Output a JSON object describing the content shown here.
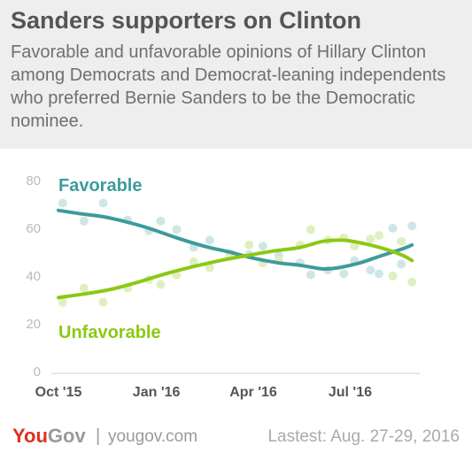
{
  "header": {
    "title": "Sanders supporters on Clinton",
    "subtitle": "Favorable and unfavorable opinions of Hillary Clinton among Democrats and Democrat-leaning independents who preferred Bernie Sanders to be the Democratic nominee."
  },
  "chart_data": {
    "type": "line",
    "title": "",
    "xlabel": "",
    "ylabel": "",
    "ylim": [
      0,
      80
    ],
    "yticks": [
      "80",
      "60",
      "40",
      "20",
      "0"
    ],
    "xticks": [
      "Oct '15",
      "Jan '16",
      "Apr '16",
      "Jul '16"
    ],
    "xlim": [
      "2015-10-01",
      "2016-09-01"
    ],
    "grid": false,
    "series": [
      {
        "name": "Favorable",
        "color": "#3f9b9b",
        "point_color": "#cfe6e6",
        "trend": [
          [
            "2015-10-01",
            67.5
          ],
          [
            "2015-10-20",
            66.2
          ],
          [
            "2015-11-10",
            65.0
          ],
          [
            "2015-12-01",
            63.0
          ],
          [
            "2015-12-25",
            60.0
          ],
          [
            "2016-01-20",
            56.0
          ],
          [
            "2016-02-15",
            52.5
          ],
          [
            "2016-03-10",
            50.0
          ],
          [
            "2016-04-01",
            47.5
          ],
          [
            "2016-04-25",
            45.5
          ],
          [
            "2016-05-15",
            44.5
          ],
          [
            "2016-06-05",
            43.0
          ],
          [
            "2016-06-20",
            43.5
          ],
          [
            "2016-07-10",
            45.5
          ],
          [
            "2016-07-30",
            48.5
          ],
          [
            "2016-08-20",
            51.5
          ],
          [
            "2016-08-28",
            53.0
          ]
        ],
        "points": [
          [
            "2015-10-05",
            70.5
          ],
          [
            "2015-10-25",
            63.0
          ],
          [
            "2015-11-12",
            70.5
          ],
          [
            "2015-12-05",
            63.5
          ],
          [
            "2015-12-25",
            59.0
          ],
          [
            "2016-01-05",
            63.0
          ],
          [
            "2016-01-20",
            59.5
          ],
          [
            "2016-02-05",
            52.0
          ],
          [
            "2016-02-20",
            55.0
          ],
          [
            "2016-03-10",
            49.5
          ],
          [
            "2016-03-28",
            49.0
          ],
          [
            "2016-04-10",
            52.5
          ],
          [
            "2016-04-25",
            48.5
          ],
          [
            "2016-05-15",
            45.5
          ],
          [
            "2016-05-25",
            40.5
          ],
          [
            "2016-06-10",
            42.5
          ],
          [
            "2016-06-25",
            41.0
          ],
          [
            "2016-07-05",
            46.5
          ],
          [
            "2016-07-20",
            42.5
          ],
          [
            "2016-07-28",
            41.0
          ],
          [
            "2016-08-10",
            60.0
          ],
          [
            "2016-08-18",
            45.0
          ],
          [
            "2016-08-28",
            61.0
          ]
        ]
      },
      {
        "name": "Unfavorable",
        "color": "#8cc814",
        "point_color": "#dff0c0",
        "trend": [
          [
            "2015-10-01",
            31.0
          ],
          [
            "2015-10-25",
            32.5
          ],
          [
            "2015-11-20",
            34.5
          ],
          [
            "2015-12-15",
            37.5
          ],
          [
            "2016-01-10",
            41.0
          ],
          [
            "2016-02-05",
            44.0
          ],
          [
            "2016-03-01",
            46.5
          ],
          [
            "2016-03-25",
            48.5
          ],
          [
            "2016-04-20",
            50.5
          ],
          [
            "2016-05-15",
            52.0
          ],
          [
            "2016-06-05",
            54.5
          ],
          [
            "2016-06-25",
            55.0
          ],
          [
            "2016-07-15",
            53.5
          ],
          [
            "2016-08-05",
            51.0
          ],
          [
            "2016-08-20",
            48.5
          ],
          [
            "2016-08-28",
            46.5
          ]
        ],
        "points": [
          [
            "2015-10-05",
            29.0
          ],
          [
            "2015-10-25",
            35.0
          ],
          [
            "2015-11-12",
            29.0
          ],
          [
            "2015-12-05",
            35.0
          ],
          [
            "2015-12-25",
            38.5
          ],
          [
            "2016-01-05",
            36.5
          ],
          [
            "2016-01-20",
            40.5
          ],
          [
            "2016-02-05",
            46.0
          ],
          [
            "2016-02-20",
            43.5
          ],
          [
            "2016-03-10",
            49.0
          ],
          [
            "2016-03-28",
            53.0
          ],
          [
            "2016-04-10",
            45.5
          ],
          [
            "2016-04-25",
            46.5
          ],
          [
            "2016-05-15",
            53.0
          ],
          [
            "2016-05-25",
            59.5
          ],
          [
            "2016-06-10",
            55.0
          ],
          [
            "2016-06-25",
            56.0
          ],
          [
            "2016-07-05",
            52.5
          ],
          [
            "2016-07-20",
            55.5
          ],
          [
            "2016-07-28",
            57.0
          ],
          [
            "2016-08-10",
            40.0
          ],
          [
            "2016-08-18",
            54.5
          ],
          [
            "2016-08-28",
            37.5
          ]
        ]
      }
    ]
  },
  "footer": {
    "brand_you": "You",
    "brand_gov": "Gov",
    "separator": "|",
    "url": "yougov.com",
    "latest": "Lastest: Aug. 27-29, 2016"
  }
}
